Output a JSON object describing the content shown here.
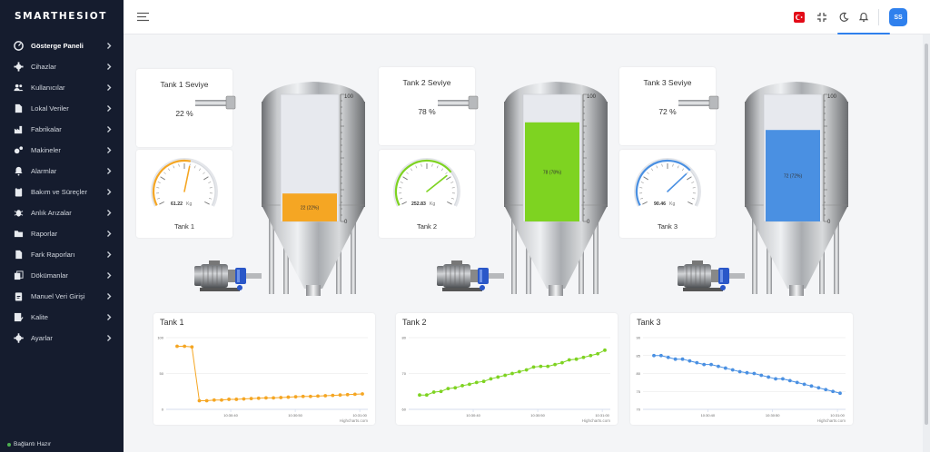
{
  "app": {
    "logo": "SMARTHESIOT",
    "user_initials": "SS",
    "status": "Bağlantı Hazır"
  },
  "sidebar": {
    "items": [
      {
        "label": "Gösterge Paneli",
        "icon": "gauge-icon",
        "active": true
      },
      {
        "label": "Cihazlar",
        "icon": "gear-icon"
      },
      {
        "label": "Kullanıcılar",
        "icon": "users-icon"
      },
      {
        "label": "Lokal Veriler",
        "icon": "document-icon"
      },
      {
        "label": "Fabrikalar",
        "icon": "factory-icon"
      },
      {
        "label": "Makineler",
        "icon": "gears-icon"
      },
      {
        "label": "Alarmlar",
        "icon": "bell-icon"
      },
      {
        "label": "Bakım ve Süreçler",
        "icon": "clipboard-icon"
      },
      {
        "label": "Anlık Arızalar",
        "icon": "bug-icon"
      },
      {
        "label": "Raporlar",
        "icon": "folder-icon"
      },
      {
        "label": "Fark Raporları",
        "icon": "file-icon"
      },
      {
        "label": "Dökümanlar",
        "icon": "copy-icon"
      },
      {
        "label": "Manuel Veri Girişi",
        "icon": "clipboard-edit-icon"
      },
      {
        "label": "Kalite",
        "icon": "quality-icon"
      },
      {
        "label": "Ayarlar",
        "icon": "cog-icon"
      }
    ]
  },
  "tanks": [
    {
      "title": "Tank 1 Seviye",
      "level_text": "22 %",
      "gauge_value": "61.22",
      "gauge_unit": "Kg",
      "gauge_name": "Tank 1",
      "gauge_fraction": 0.55,
      "color": "#f5a623",
      "level": 22,
      "bar_label": "22 (22%)"
    },
    {
      "title": "Tank 2 Seviye",
      "level_text": "78 %",
      "gauge_value": "252.83",
      "gauge_unit": "Kg",
      "gauge_name": "Tank 2",
      "gauge_fraction": 0.72,
      "color": "#7ed321",
      "level": 78,
      "bar_label": "78 (78%)"
    },
    {
      "title": "Tank 3 Seviye",
      "level_text": "72 %",
      "gauge_value": "90.46",
      "gauge_unit": "Kg",
      "gauge_name": "Tank 3",
      "gauge_fraction": 0.7,
      "color": "#4a90e2",
      "level": 72,
      "bar_label": "72 (72%)"
    }
  ],
  "scale": {
    "max": "100",
    "min": "0"
  },
  "chart_data": [
    {
      "type": "line",
      "title": "Tank 1",
      "color": "#f5a623",
      "ylim": [
        0,
        100
      ],
      "yticks": [
        "100",
        "50",
        "0"
      ],
      "xticks": [
        "10:30:40",
        "10:30:50",
        "10:31:00"
      ],
      "credits": "Highcharts.com",
      "values": [
        88,
        88,
        87,
        12,
        12,
        13,
        13,
        14,
        14,
        14.5,
        15,
        15.5,
        16,
        16,
        16.5,
        17,
        17.5,
        18,
        18,
        18.5,
        19,
        19.5,
        20,
        20.5,
        21,
        21.5
      ]
    },
    {
      "type": "line",
      "title": "Tank 2",
      "color": "#7ed321",
      "ylim": [
        60,
        80
      ],
      "yticks": [
        "80",
        "70",
        "60"
      ],
      "xticks": [
        "10:30:40",
        "10:30:50",
        "10:31:00"
      ],
      "credits": "Highcharts.com",
      "values": [
        64,
        64,
        64.8,
        65,
        65.8,
        66,
        66.6,
        67,
        67.5,
        67.8,
        68.5,
        69,
        69.5,
        70,
        70.5,
        71,
        71.8,
        72,
        72,
        72.5,
        73,
        73.8,
        74,
        74.5,
        75,
        75.5,
        76.5
      ]
    },
    {
      "type": "line",
      "title": "Tank 3",
      "color": "#4a90e2",
      "ylim": [
        70,
        90
      ],
      "yticks": [
        "90",
        "85",
        "80",
        "75",
        "70"
      ],
      "xticks": [
        "10:30:40",
        "10:30:50",
        "10:31:00"
      ],
      "credits": "Highcharts.com",
      "values": [
        85,
        85,
        84.5,
        84,
        84,
        83.5,
        83,
        82.5,
        82.5,
        82,
        81.5,
        81,
        80.5,
        80.2,
        80,
        79.5,
        79,
        78.5,
        78.5,
        78,
        77.5,
        77,
        76.5,
        76,
        75.5,
        75,
        74.5
      ]
    }
  ]
}
